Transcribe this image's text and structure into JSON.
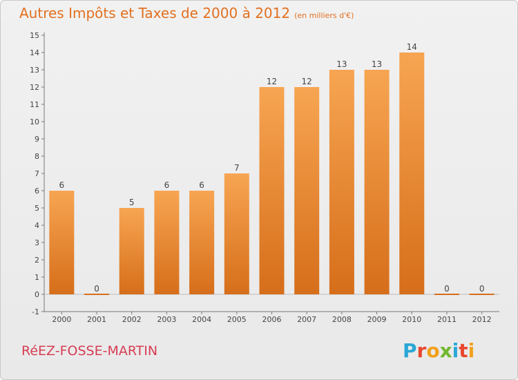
{
  "title": "Autres Impôts et Taxes de 2000 à 2012",
  "subtitle": "(en milliers d'€)",
  "commune": "RéEZ-FOSSE-MARTIN",
  "brand": {
    "letters": [
      "P",
      "r",
      "o",
      "x",
      "i",
      "t",
      "i"
    ],
    "colors": [
      "#2aa7d6",
      "#e8482f",
      "#f2a11c",
      "#74b72e",
      "#2aa7d6",
      "#e8482f",
      "#f2a11c"
    ]
  },
  "colors": {
    "bar_top": "#f7a552",
    "bar_bottom": "#d66e1a",
    "title": "#e2701f",
    "commune": "#d63d53"
  },
  "chart_data": {
    "type": "bar",
    "categories": [
      "2000",
      "2001",
      "2002",
      "2003",
      "2004",
      "2005",
      "2006",
      "2007",
      "2008",
      "2009",
      "2010",
      "2011",
      "2012"
    ],
    "values": [
      6,
      0,
      5,
      6,
      6,
      7,
      12,
      12,
      13,
      13,
      14,
      0,
      0
    ],
    "data_labels": [
      "6",
      "0",
      "5",
      "6",
      "6",
      "7",
      "12",
      "12",
      "13",
      "13",
      "14",
      "0",
      "0"
    ],
    "ylim": [
      -1,
      15
    ],
    "yticks": [
      "-1",
      "0",
      "1",
      "2",
      "3",
      "4",
      "5",
      "6",
      "7",
      "8",
      "9",
      "10",
      "11",
      "12",
      "13",
      "14",
      "15"
    ],
    "grid": false,
    "xlabel": "",
    "ylabel": ""
  }
}
